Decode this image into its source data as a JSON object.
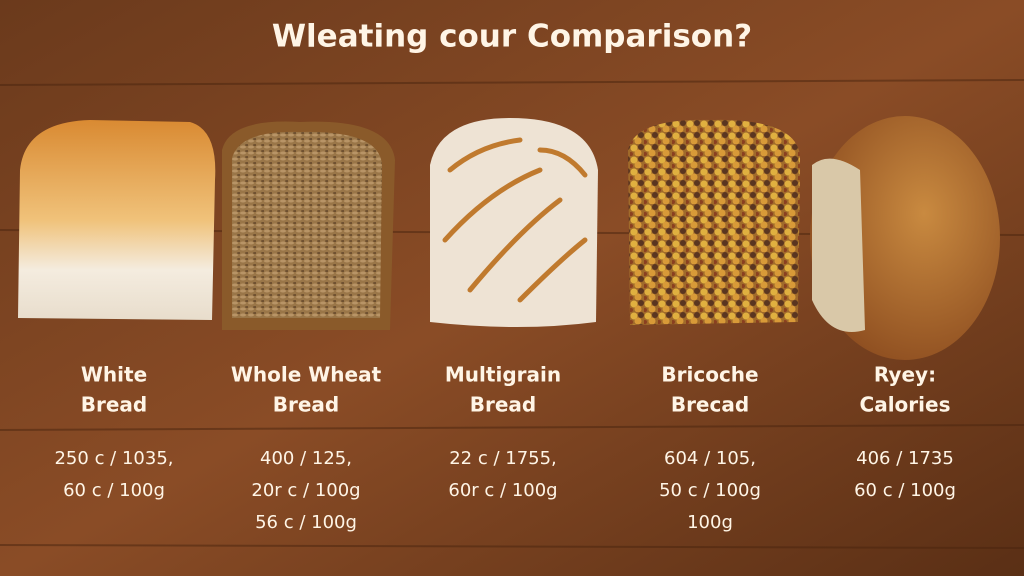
{
  "header": {
    "title": "Wleating cour Comparison?"
  },
  "items": [
    {
      "name": [
        "White",
        "Bread"
      ],
      "info": [
        "250 c / 1035,",
        "60 c / 100g"
      ]
    },
    {
      "name": [
        "Whole Wheat",
        "Bread"
      ],
      "info": [
        "400 / 125,",
        "20r c / 100g",
        "56 c / 100g"
      ]
    },
    {
      "name": [
        "Multigrain",
        "Bread"
      ],
      "info": [
        "22 c / 1755,",
        "60r c / 100g"
      ]
    },
    {
      "name": [
        "Bricoche",
        "Brecad"
      ],
      "info": [
        "604 / 105,",
        "50 c / 100g",
        "100g"
      ]
    },
    {
      "name": [
        "Ryey:",
        "Calories"
      ],
      "info": [
        "406 / 1735",
        "60 c / 100g"
      ]
    }
  ]
}
